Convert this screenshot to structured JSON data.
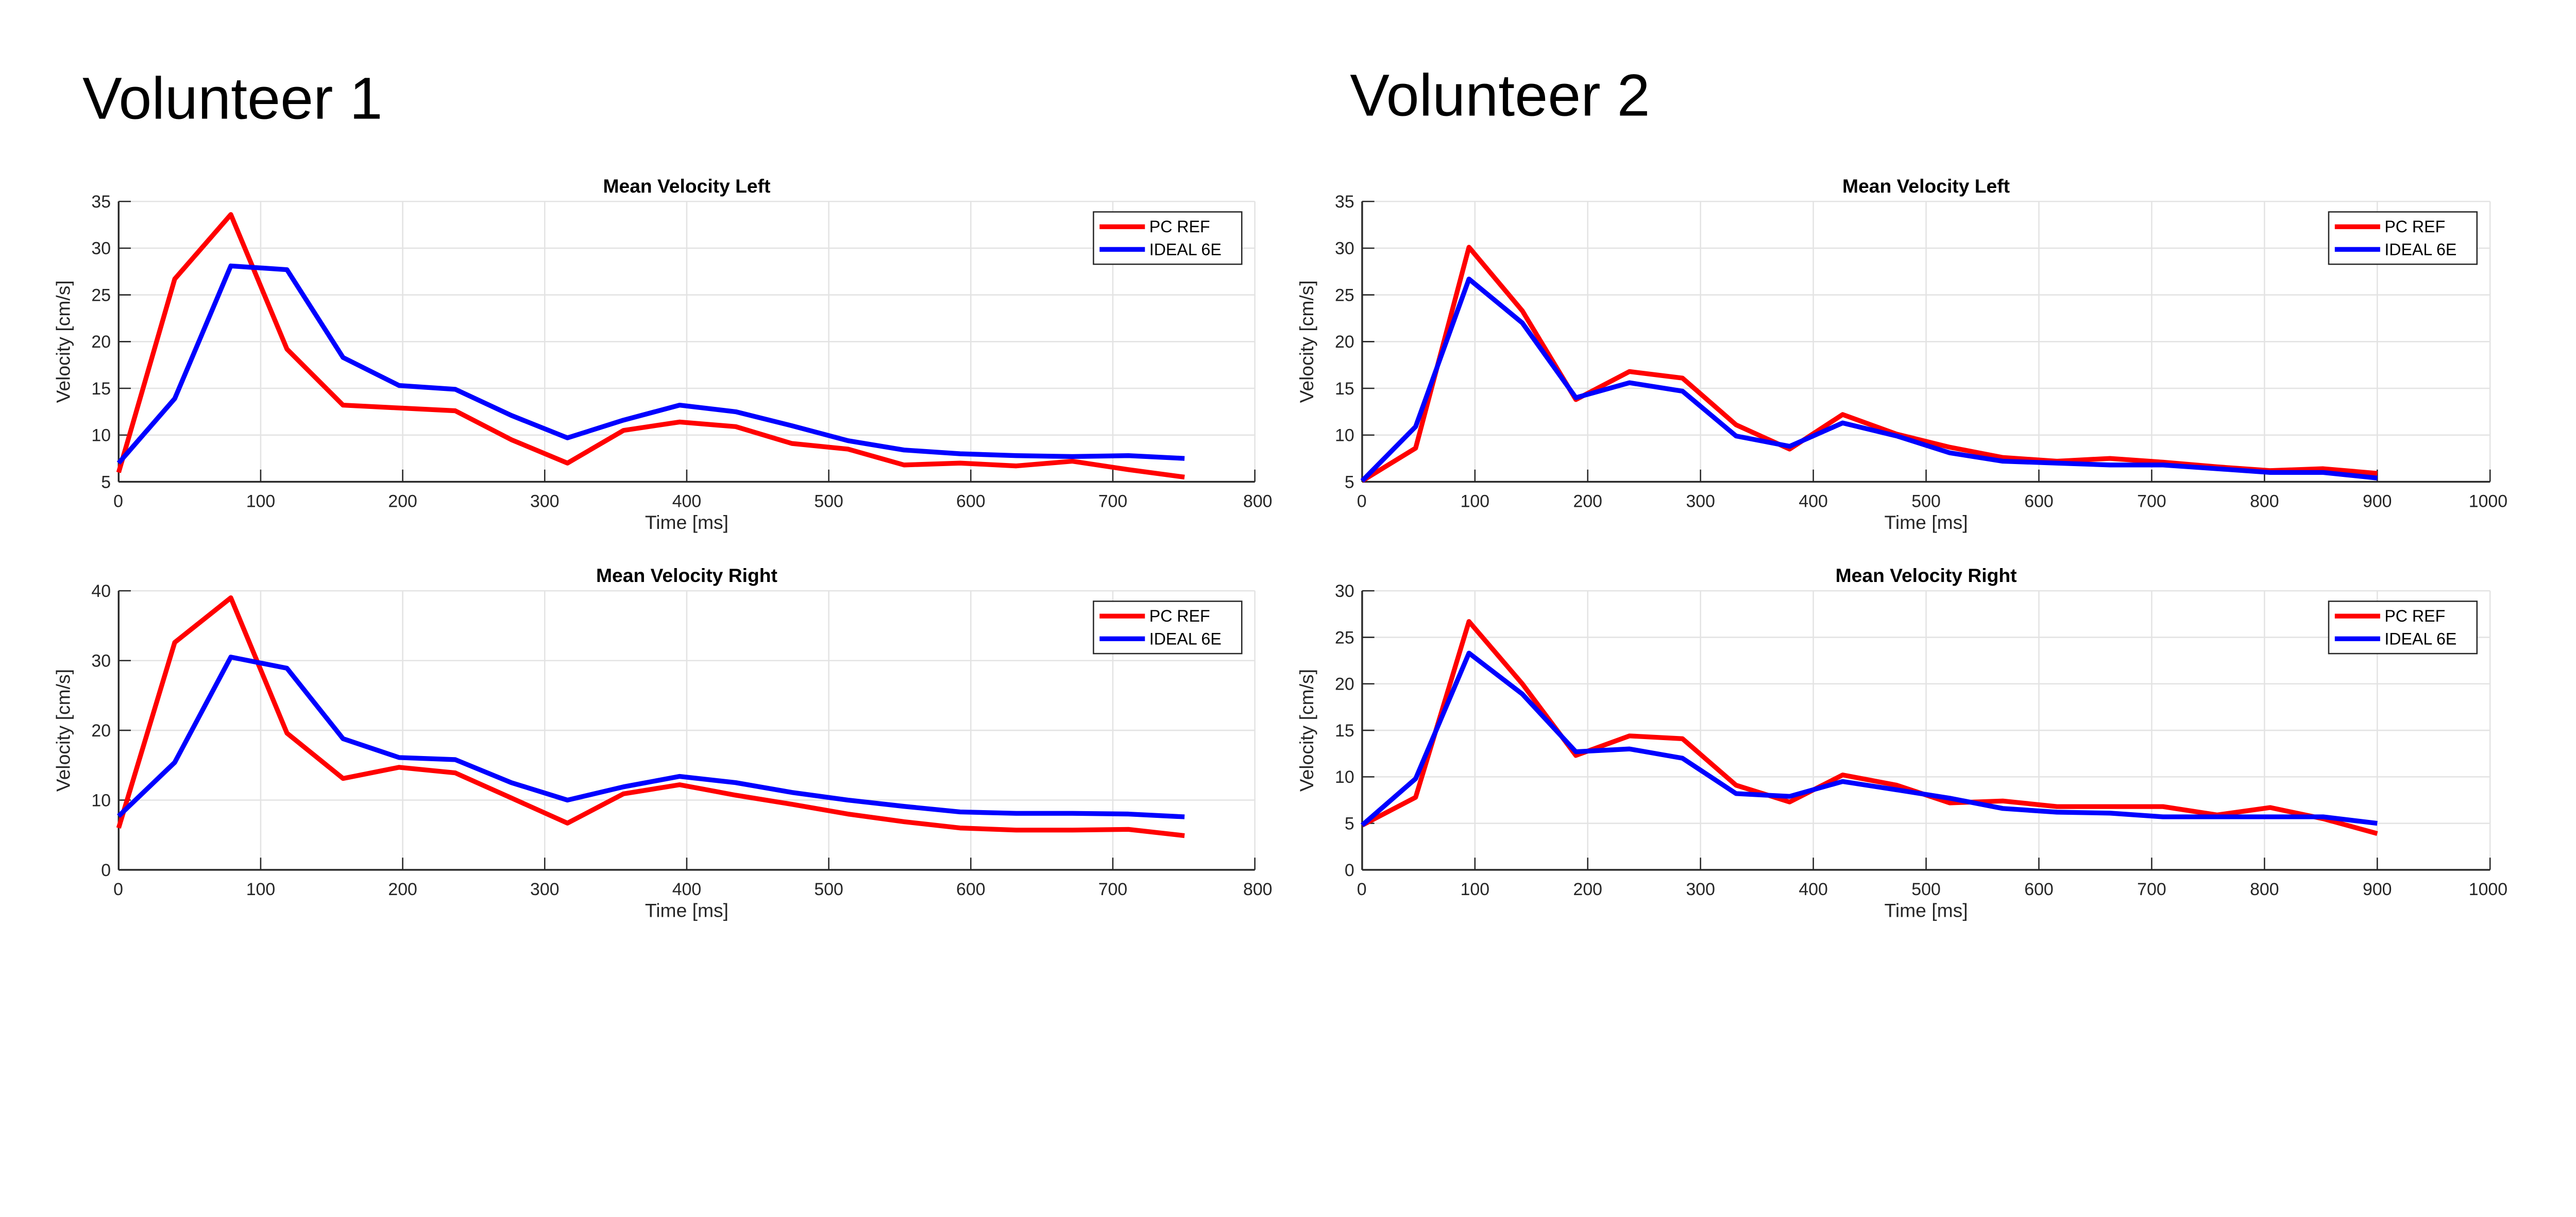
{
  "page_titles": [
    "Volunteer 1",
    "Volunteer 2"
  ],
  "colors": {
    "pc_ref": "#ff0000",
    "ideal_6e": "#0000ff",
    "grid": "#e3e3e3",
    "axis": "#262626"
  },
  "chart_data": [
    {
      "type": "line",
      "volunteer": "Volunteer 1",
      "title": "Mean Velocity Left",
      "xlabel": "Time [ms]",
      "ylabel": "Velocity [cm/s]",
      "xlim": [
        0,
        800
      ],
      "ylim": [
        5,
        35
      ],
      "xticks": [
        0,
        100,
        200,
        300,
        400,
        500,
        600,
        700,
        800
      ],
      "yticks": [
        5,
        10,
        15,
        20,
        25,
        30,
        35
      ],
      "grid": true,
      "legend_position": "top-right",
      "x": [
        0,
        39.5,
        79,
        118.5,
        158,
        197.5,
        237,
        276.5,
        316,
        355.5,
        395,
        434.5,
        474,
        513.5,
        553,
        592.5,
        632,
        671.5,
        711,
        750.5
      ],
      "series": [
        {
          "name": "PC REF",
          "values": [
            6.0,
            26.7,
            33.6,
            19.2,
            13.2,
            12.9,
            12.6,
            9.5,
            7.0,
            10.5,
            11.4,
            10.9,
            9.1,
            8.5,
            6.8,
            7.0,
            6.7,
            7.2,
            6.3,
            5.5
          ]
        },
        {
          "name": "IDEAL 6E",
          "values": [
            7.0,
            13.9,
            28.1,
            27.7,
            18.3,
            15.3,
            14.9,
            12.1,
            9.7,
            11.6,
            13.2,
            12.5,
            11.0,
            9.4,
            8.4,
            8.0,
            7.8,
            7.7,
            7.8,
            7.5
          ]
        }
      ]
    },
    {
      "type": "line",
      "volunteer": "Volunteer 1",
      "title": "Mean Velocity Right",
      "xlabel": "Time [ms]",
      "ylabel": "Velocity [cm/s]",
      "xlim": [
        0,
        800
      ],
      "ylim": [
        0,
        40
      ],
      "xticks": [
        0,
        100,
        200,
        300,
        400,
        500,
        600,
        700,
        800
      ],
      "yticks": [
        0,
        10,
        20,
        30,
        40
      ],
      "grid": true,
      "legend_position": "top-right",
      "x": [
        0,
        39.5,
        79,
        118.5,
        158,
        197.5,
        237,
        276.5,
        316,
        355.5,
        395,
        434.5,
        474,
        513.5,
        553,
        592.5,
        632,
        671.5,
        711,
        750.5
      ],
      "series": [
        {
          "name": "PC REF",
          "values": [
            6.0,
            32.6,
            39.0,
            19.6,
            13.1,
            14.7,
            13.9,
            10.3,
            6.7,
            10.9,
            12.2,
            10.7,
            9.4,
            8.0,
            6.9,
            6.0,
            5.7,
            5.7,
            5.8,
            4.9
          ]
        },
        {
          "name": "IDEAL 6E",
          "values": [
            7.7,
            15.4,
            30.5,
            28.9,
            18.8,
            16.1,
            15.8,
            12.5,
            10.0,
            11.9,
            13.4,
            12.5,
            11.1,
            10.0,
            9.1,
            8.3,
            8.1,
            8.1,
            8.0,
            7.6
          ]
        }
      ]
    },
    {
      "type": "line",
      "volunteer": "Volunteer 2",
      "title": "Mean Velocity Left",
      "xlabel": "Time [ms]",
      "ylabel": "Velocity [cm/s]",
      "xlim": [
        0,
        1000
      ],
      "ylim": [
        5,
        35
      ],
      "xticks": [
        0,
        100,
        200,
        300,
        400,
        500,
        600,
        700,
        800,
        900,
        1000
      ],
      "yticks": [
        5,
        10,
        15,
        20,
        25,
        30,
        35
      ],
      "grid": true,
      "legend_position": "top-right",
      "x": [
        0,
        47.4,
        94.7,
        142,
        189.5,
        237,
        284,
        331.5,
        379,
        426,
        474,
        521,
        568,
        616,
        663,
        710,
        758,
        805,
        852,
        900
      ],
      "series": [
        {
          "name": "PC REF",
          "values": [
            5.1,
            8.6,
            30.1,
            23.3,
            13.8,
            16.8,
            16.1,
            11.1,
            8.5,
            12.2,
            10.1,
            8.7,
            7.6,
            7.2,
            7.5,
            7.1,
            6.6,
            6.2,
            6.4,
            5.9
          ]
        },
        {
          "name": "IDEAL 6E",
          "values": [
            5.1,
            10.9,
            26.7,
            22.0,
            14.0,
            15.6,
            14.7,
            9.9,
            8.8,
            11.3,
            9.9,
            8.1,
            7.2,
            7.0,
            6.8,
            6.8,
            6.4,
            6.0,
            6.0,
            5.4
          ]
        }
      ]
    },
    {
      "type": "line",
      "volunteer": "Volunteer 2",
      "title": "Mean Velocity Right",
      "xlabel": "Time [ms]",
      "ylabel": "Velocity [cm/s]",
      "xlim": [
        0,
        1000
      ],
      "ylim": [
        0,
        30
      ],
      "xticks": [
        0,
        100,
        200,
        300,
        400,
        500,
        600,
        700,
        800,
        900,
        1000
      ],
      "yticks": [
        0,
        5,
        10,
        15,
        20,
        25,
        30
      ],
      "grid": true,
      "legend_position": "top-right",
      "x": [
        0,
        47.4,
        94.7,
        142,
        189.5,
        237,
        284,
        331.5,
        379,
        426,
        474,
        521,
        568,
        616,
        663,
        710,
        758,
        805,
        852,
        900
      ],
      "series": [
        {
          "name": "PC REF",
          "values": [
            4.8,
            7.8,
            26.7,
            20.0,
            12.3,
            14.4,
            14.1,
            9.1,
            7.3,
            10.2,
            9.1,
            7.2,
            7.4,
            6.8,
            6.8,
            6.8,
            5.9,
            6.7,
            5.5,
            3.9
          ]
        },
        {
          "name": "IDEAL 6E",
          "values": [
            4.8,
            9.8,
            23.3,
            18.9,
            12.7,
            13.0,
            12.0,
            8.2,
            7.9,
            9.5,
            8.6,
            7.7,
            6.6,
            6.2,
            6.1,
            5.7,
            5.7,
            5.7,
            5.7,
            5.0
          ]
        }
      ]
    }
  ]
}
